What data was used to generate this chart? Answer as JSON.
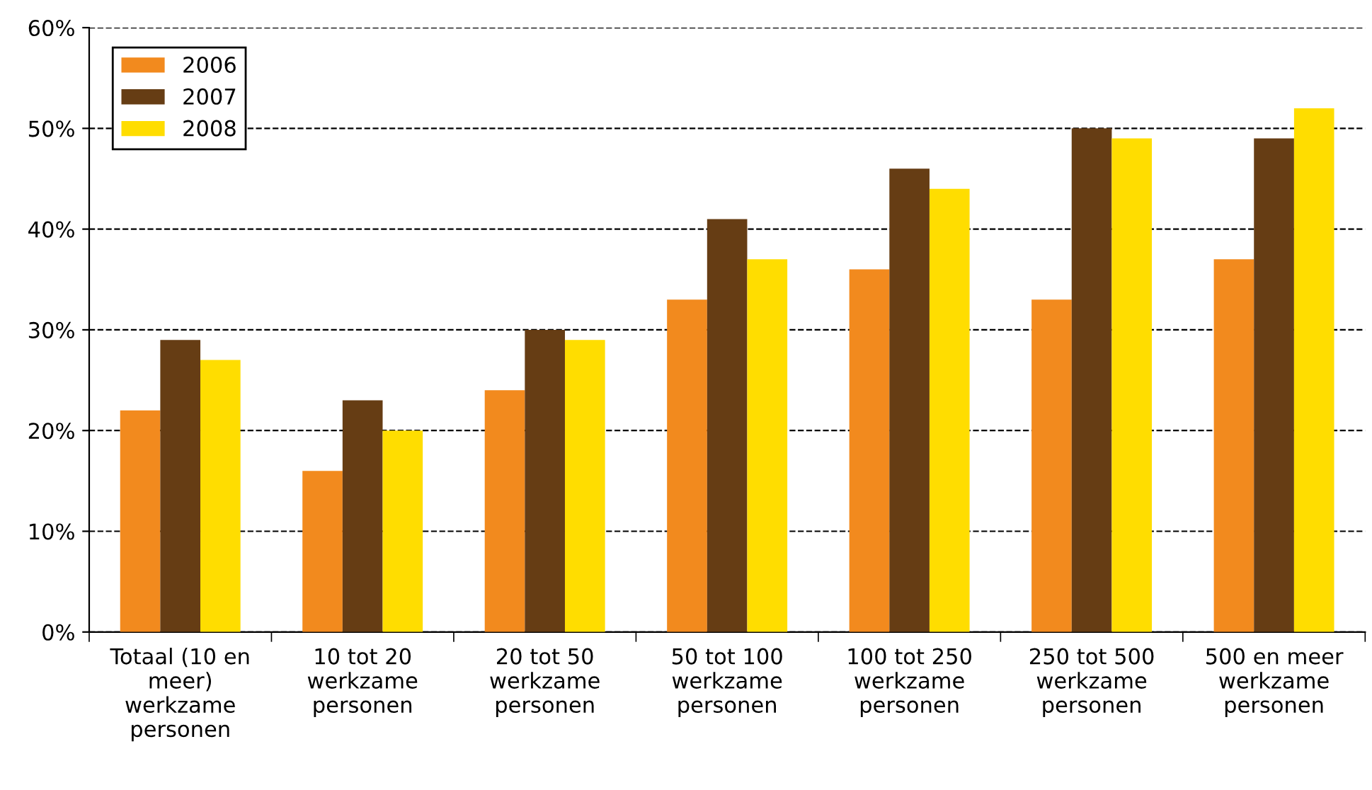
{
  "chart_data": {
    "type": "bar",
    "categories": [
      "Totaal (10 en\nmeer)\nwerkzame\npersonen",
      "10 tot 20\nwerkzame\npersonen",
      "20 tot 50\nwerkzame\npersonen",
      "50 tot 100\nwerkzame\npersonen",
      "100 tot 250\nwerkzame\npersonen",
      "250 tot 500\nwerkzame\npersonen",
      "500 en meer\nwerkzame\npersonen"
    ],
    "series": [
      {
        "name": "2006",
        "color": "#f28a1e",
        "values": [
          22,
          16,
          24,
          33,
          36,
          33,
          37
        ]
      },
      {
        "name": "2007",
        "color": "#663d14",
        "values": [
          29,
          23,
          30,
          41,
          46,
          50,
          49
        ]
      },
      {
        "name": "2008",
        "color": "#ffdd00",
        "values": [
          27,
          20,
          29,
          37,
          44,
          49,
          52
        ]
      }
    ],
    "ylim": [
      0,
      60
    ],
    "yticks": [
      {
        "value": 0,
        "label": "0%"
      },
      {
        "value": 10,
        "label": "10%"
      },
      {
        "value": 20,
        "label": "20%"
      },
      {
        "value": 30,
        "label": "30%"
      },
      {
        "value": 40,
        "label": "40%"
      },
      {
        "value": 50,
        "label": "50%"
      },
      {
        "value": 60,
        "label": "60%"
      }
    ],
    "grid": "y",
    "line_style": "dashed",
    "legend": "top left"
  }
}
